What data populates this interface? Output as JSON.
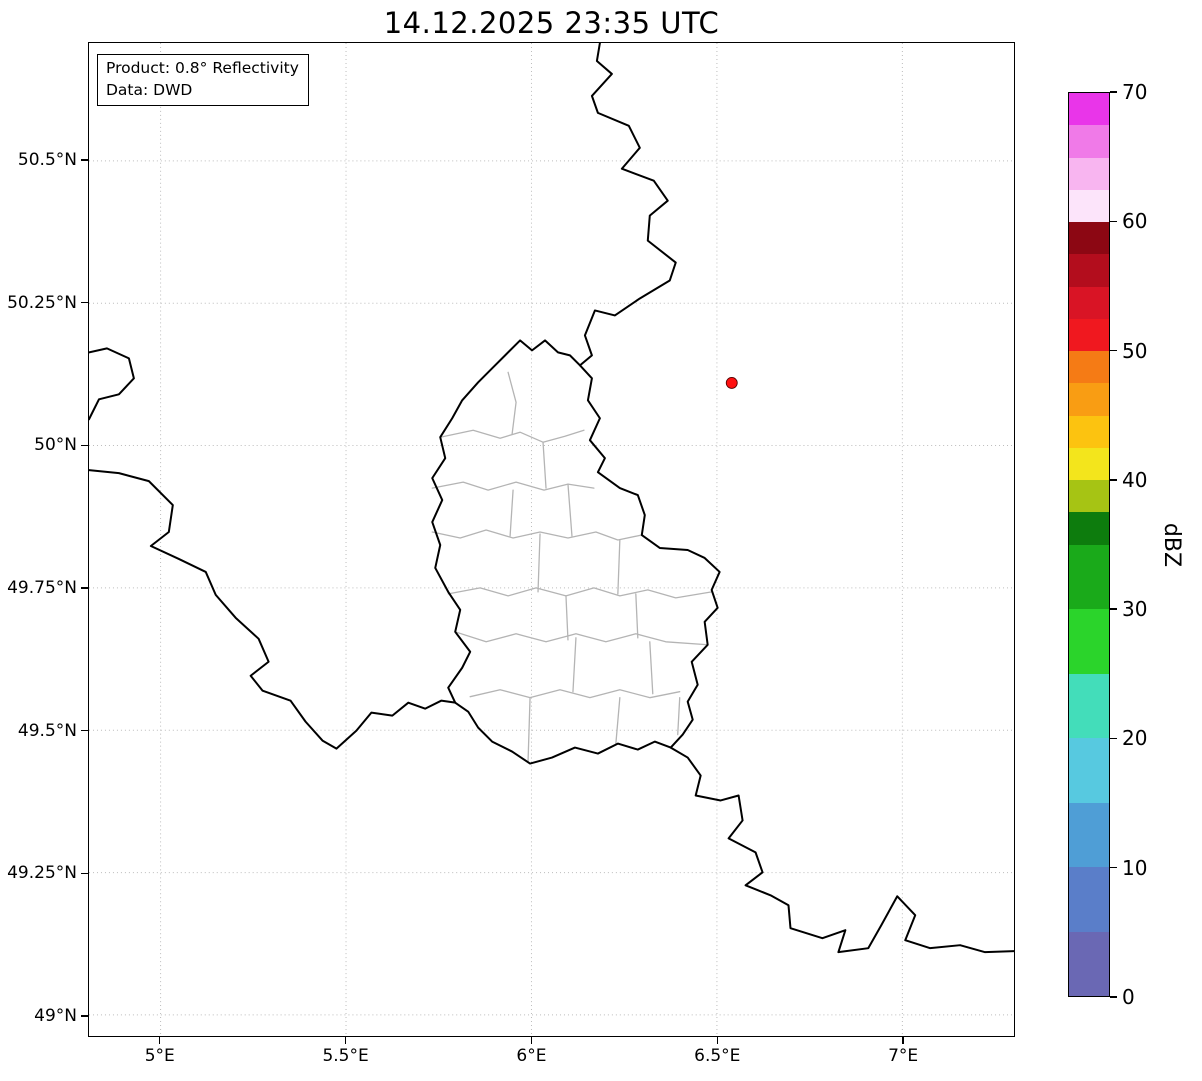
{
  "title": "14.12.2025 23:35 UTC",
  "info_box": {
    "line1": "Product: 0.8° Reflectivity",
    "line2": "Data: DWD"
  },
  "colorbar": {
    "label": "dBZ",
    "range": [
      0,
      70
    ],
    "ticks": [
      0,
      10,
      20,
      30,
      40,
      50,
      60,
      70
    ],
    "segments": [
      {
        "from": 67.5,
        "to": 70,
        "color": "#e935e9"
      },
      {
        "from": 65,
        "to": 67.5,
        "color": "#f07ae8"
      },
      {
        "from": 62.5,
        "to": 65,
        "color": "#f8b5f0"
      },
      {
        "from": 60,
        "to": 62.5,
        "color": "#fce4fa"
      },
      {
        "from": 57.5,
        "to": 60,
        "color": "#8c0713"
      },
      {
        "from": 55,
        "to": 57.5,
        "color": "#b30d1d"
      },
      {
        "from": 52.5,
        "to": 55,
        "color": "#d91425"
      },
      {
        "from": 50,
        "to": 52.5,
        "color": "#f0181f"
      },
      {
        "from": 47.5,
        "to": 50,
        "color": "#f57b15"
      },
      {
        "from": 45,
        "to": 47.5,
        "color": "#f99d13"
      },
      {
        "from": 42.5,
        "to": 45,
        "color": "#fcc310"
      },
      {
        "from": 40,
        "to": 42.5,
        "color": "#f3e51c"
      },
      {
        "from": 37.5,
        "to": 40,
        "color": "#a6c414"
      },
      {
        "from": 35,
        "to": 37.5,
        "color": "#0d7c0d"
      },
      {
        "from": 30,
        "to": 35,
        "color": "#1aaa1a"
      },
      {
        "from": 25,
        "to": 30,
        "color": "#2bd42b"
      },
      {
        "from": 20,
        "to": 25,
        "color": "#43ddba"
      },
      {
        "from": 15,
        "to": 20,
        "color": "#57c9e0"
      },
      {
        "from": 10,
        "to": 15,
        "color": "#4f9ed6"
      },
      {
        "from": 5,
        "to": 10,
        "color": "#5a7ec9"
      },
      {
        "from": 0,
        "to": 5,
        "color": "#6a68b4"
      }
    ]
  },
  "chart_data": {
    "type": "map",
    "title": "14.12.2025 23:35 UTC",
    "product": "0.8° Reflectivity",
    "data_source": "DWD",
    "map_region": "Luxembourg and surrounding BE/DE/FR border region",
    "grid": true,
    "x_axis": {
      "range": [
        4.807,
        7.301
      ],
      "ticks": [
        {
          "value": 5,
          "label": "5°E"
        },
        {
          "value": 5.5,
          "label": "5.5°E"
        },
        {
          "value": 6,
          "label": "6°E"
        },
        {
          "value": 6.5,
          "label": "6.5°E"
        },
        {
          "value": 7,
          "label": "7°E"
        }
      ]
    },
    "y_axis": {
      "range": [
        48.963,
        50.707
      ],
      "ticks": [
        {
          "value": 49,
          "label": "49°N"
        },
        {
          "value": 49.25,
          "label": "49.25°N"
        },
        {
          "value": 49.5,
          "label": "49.5°N"
        },
        {
          "value": 49.75,
          "label": "49.75°N"
        },
        {
          "value": 50,
          "label": "50°N"
        },
        {
          "value": 50.25,
          "label": "50.25°N"
        },
        {
          "value": 50.5,
          "label": "50.5°N"
        }
      ]
    },
    "colorbar_label": "dBZ",
    "colorbar_range": [
      0,
      70
    ],
    "radar_marker": {
      "lon": 6.54,
      "lat": 50.11,
      "color": "#ff1010"
    },
    "reflectivity_echoes": "none visible (clear map, no precipitation echoes plotted)"
  }
}
